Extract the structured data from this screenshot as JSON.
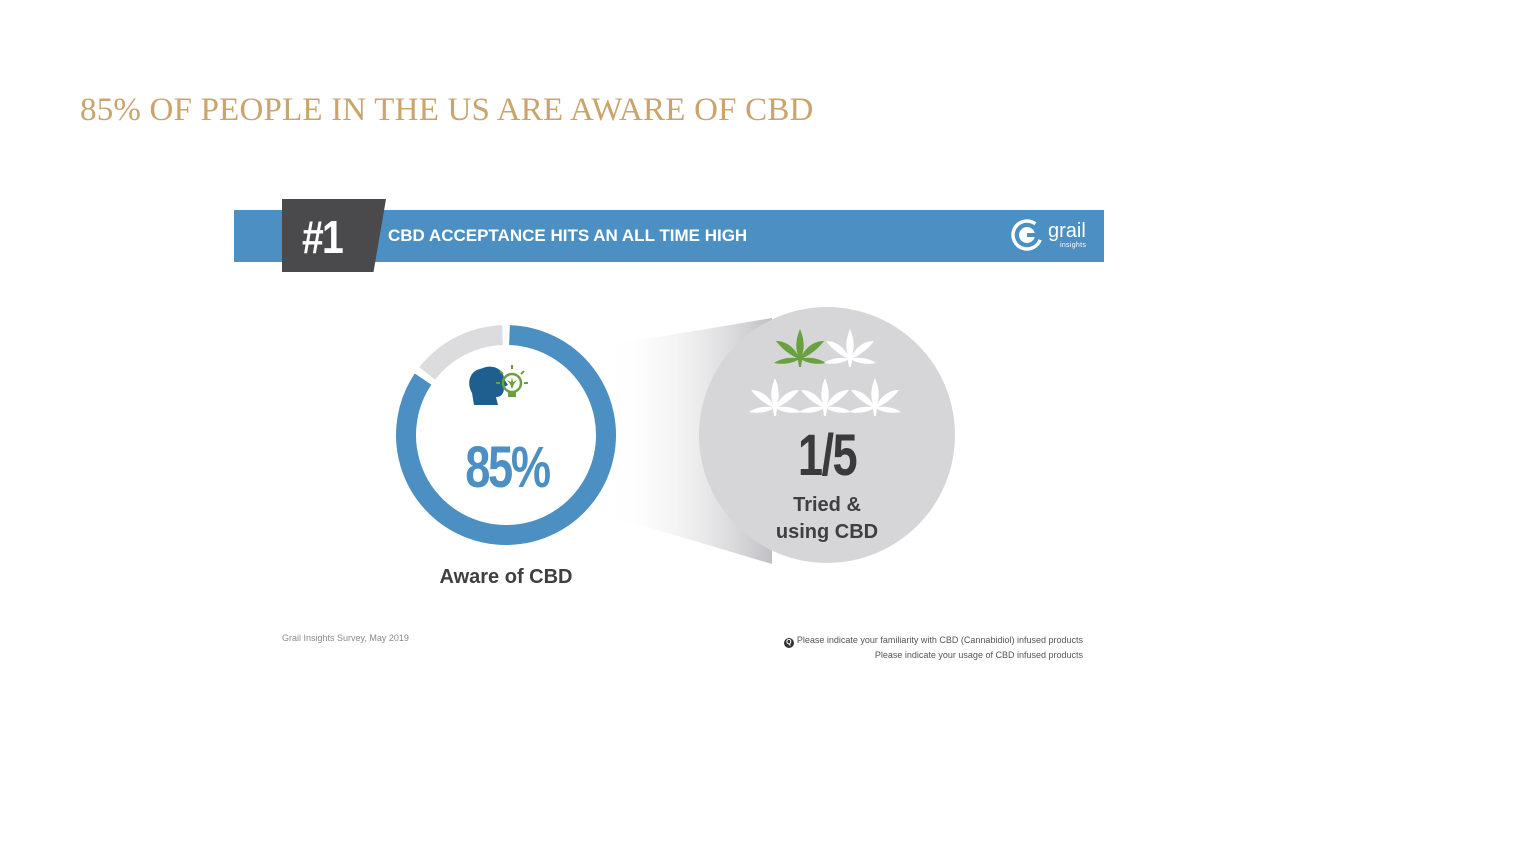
{
  "slide": {
    "title": "85% OF PEOPLE IN THE US ARE AWARE OF CBD"
  },
  "infographic": {
    "rank": "#1",
    "banner_title": "CBD ACCEPTANCE HITS AN ALL TIME HIGH",
    "logo": {
      "name": "grail",
      "sub": "insights"
    },
    "source": "Grail Insights Survey, May 2019",
    "questions": [
      "Please indicate your familiarity with CBD (Cannabidiol) infused products",
      "Please indicate your usage of CBD infused products"
    ],
    "colors": {
      "primary_blue": "#4c8fc2",
      "dark_gray": "#4a4a4c",
      "light_gray": "#dcdcde",
      "title_gold": "#c9a46c",
      "leaf_green": "#6aa13f"
    },
    "icons": [
      "head-lightbulb-icon",
      "cannabis-leaf-icon"
    ]
  },
  "chart_data": [
    {
      "type": "pie",
      "variant": "donut",
      "value_label": "85%",
      "caption": "Aware of CBD",
      "slices": [
        {
          "name": "Aware of CBD",
          "value": 85,
          "color": "#4c8fc2"
        },
        {
          "name": "",
          "value": 15,
          "color": "#dcdcde"
        }
      ]
    },
    {
      "type": "pictograph",
      "value_label": "1/5",
      "caption_lines": [
        "Tried &",
        "using CBD"
      ],
      "highlighted": 1,
      "total": 5
    }
  ]
}
